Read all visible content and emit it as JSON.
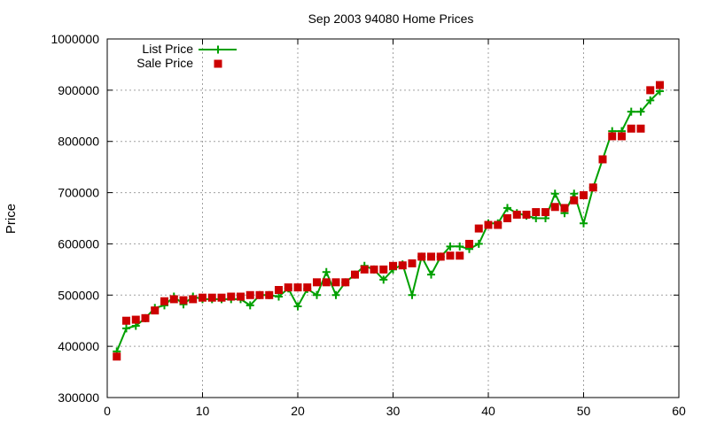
{
  "chart_data": {
    "type": "line",
    "title": "Sep 2003 94080 Home Prices",
    "xlabel": "",
    "ylabel": "Price",
    "xlim": [
      0,
      60
    ],
    "ylim": [
      300000,
      1000000
    ],
    "x_ticks": [
      0,
      10,
      20,
      30,
      40,
      50,
      60
    ],
    "y_ticks": [
      300000,
      400000,
      500000,
      600000,
      700000,
      800000,
      900000,
      1000000
    ],
    "grid": true,
    "legend_position": "top-left",
    "series": [
      {
        "name": "List Price",
        "style": "line-with-plus-markers",
        "color": "#00a000",
        "points": [
          [
            1,
            390000
          ],
          [
            2,
            435000
          ],
          [
            3,
            440000
          ],
          [
            4,
            455000
          ],
          [
            5,
            475000
          ],
          [
            6,
            480000
          ],
          [
            7,
            497000
          ],
          [
            8,
            482000
          ],
          [
            9,
            497000
          ],
          [
            10,
            492000
          ],
          [
            11,
            492000
          ],
          [
            12,
            492000
          ],
          [
            13,
            492000
          ],
          [
            14,
            492000
          ],
          [
            15,
            480000
          ],
          [
            16,
            500000
          ],
          [
            17,
            500000
          ],
          [
            18,
            497000
          ],
          [
            19,
            513000
          ],
          [
            20,
            478000
          ],
          [
            21,
            512000
          ],
          [
            22,
            500000
          ],
          [
            23,
            545000
          ],
          [
            24,
            500000
          ],
          [
            25,
            525000
          ],
          [
            26,
            540000
          ],
          [
            27,
            557000
          ],
          [
            28,
            550000
          ],
          [
            29,
            530000
          ],
          [
            30,
            550000
          ],
          [
            31,
            560000
          ],
          [
            32,
            500000
          ],
          [
            33,
            575000
          ],
          [
            34,
            540000
          ],
          [
            35,
            575000
          ],
          [
            36,
            595000
          ],
          [
            37,
            595000
          ],
          [
            38,
            590000
          ],
          [
            39,
            600000
          ],
          [
            40,
            640000
          ],
          [
            41,
            640000
          ],
          [
            42,
            670000
          ],
          [
            43,
            660000
          ],
          [
            44,
            655000
          ],
          [
            45,
            650000
          ],
          [
            46,
            650000
          ],
          [
            47,
            698000
          ],
          [
            48,
            660000
          ],
          [
            49,
            698000
          ],
          [
            50,
            640000
          ],
          [
            51,
            710000
          ],
          [
            52,
            765000
          ],
          [
            53,
            820000
          ],
          [
            54,
            820000
          ],
          [
            55,
            858000
          ],
          [
            56,
            858000
          ],
          [
            57,
            880000
          ],
          [
            58,
            898000
          ]
        ]
      },
      {
        "name": "Sale Price",
        "style": "square-markers",
        "color": "#cc0000",
        "points": [
          [
            1,
            380000
          ],
          [
            2,
            450000
          ],
          [
            3,
            452000
          ],
          [
            4,
            455000
          ],
          [
            5,
            470000
          ],
          [
            6,
            488000
          ],
          [
            7,
            492000
          ],
          [
            8,
            490000
          ],
          [
            9,
            492000
          ],
          [
            10,
            495000
          ],
          [
            11,
            495000
          ],
          [
            12,
            495000
          ],
          [
            13,
            497000
          ],
          [
            14,
            497000
          ],
          [
            15,
            500000
          ],
          [
            16,
            500000
          ],
          [
            17,
            500000
          ],
          [
            18,
            510000
          ],
          [
            19,
            515000
          ],
          [
            20,
            515000
          ],
          [
            21,
            515000
          ],
          [
            22,
            525000
          ],
          [
            23,
            525000
          ],
          [
            24,
            525000
          ],
          [
            25,
            525000
          ],
          [
            26,
            540000
          ],
          [
            27,
            550000
          ],
          [
            28,
            550000
          ],
          [
            29,
            550000
          ],
          [
            30,
            557000
          ],
          [
            31,
            558000
          ],
          [
            32,
            562000
          ],
          [
            33,
            575000
          ],
          [
            34,
            575000
          ],
          [
            35,
            575000
          ],
          [
            36,
            577000
          ],
          [
            37,
            577000
          ],
          [
            38,
            600000
          ],
          [
            39,
            630000
          ],
          [
            40,
            637000
          ],
          [
            41,
            637000
          ],
          [
            42,
            650000
          ],
          [
            43,
            657000
          ],
          [
            44,
            657000
          ],
          [
            45,
            662000
          ],
          [
            46,
            662000
          ],
          [
            47,
            672000
          ],
          [
            48,
            670000
          ],
          [
            49,
            685000
          ],
          [
            50,
            695000
          ],
          [
            51,
            710000
          ],
          [
            52,
            765000
          ],
          [
            53,
            810000
          ],
          [
            54,
            810000
          ],
          [
            55,
            825000
          ],
          [
            56,
            825000
          ],
          [
            57,
            900000
          ],
          [
            58,
            910000
          ]
        ]
      }
    ]
  }
}
